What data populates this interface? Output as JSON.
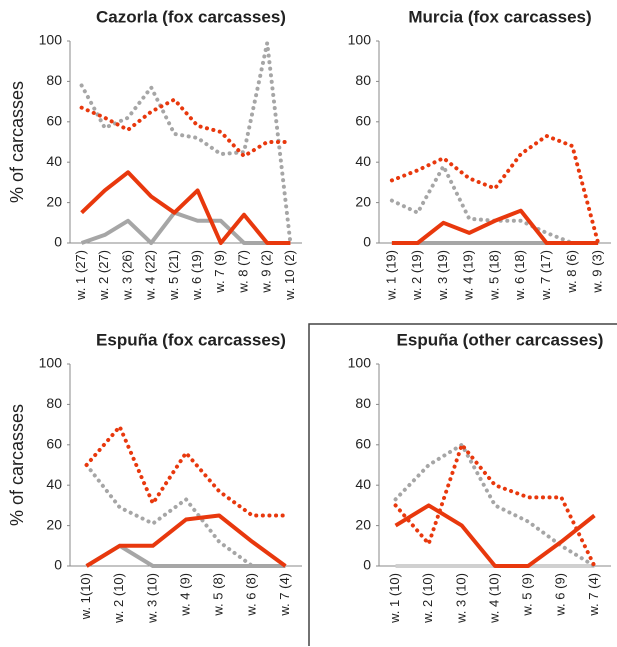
{
  "chart_data": [
    {
      "type": "line",
      "title": "Cazorla (fox carcasses)",
      "ylabel": "% of carcasses",
      "categories": [
        "w. 1 (27)",
        "w. 2 (27)",
        "w. 3 (26)",
        "w. 4 (22)",
        "w. 5 (21)",
        "w. 6 (19)",
        "w. 7 (9)",
        "w. 8 (7)",
        "w. 9 (2)",
        "w. 10 (2)"
      ],
      "ylim": [
        0,
        100
      ],
      "yticks": [
        0,
        20,
        40,
        60,
        80,
        100
      ],
      "series": [
        {
          "color": "#a6a6a6",
          "style": "solid",
          "values": [
            0,
            4,
            11,
            0,
            15,
            11,
            11,
            0,
            0,
            0
          ]
        },
        {
          "color": "#a6a6a6",
          "style": "dotted",
          "values": [
            78,
            57,
            62,
            77,
            54,
            52,
            44,
            45,
            99,
            0
          ]
        },
        {
          "color": "#e8380d",
          "style": "dotted",
          "values": [
            67,
            62,
            56,
            65,
            71,
            58,
            55,
            43,
            50,
            50
          ]
        },
        {
          "color": "#e8380d",
          "style": "solid",
          "values": [
            15,
            26,
            35,
            23,
            15,
            26,
            0,
            14,
            0,
            0
          ]
        }
      ]
    },
    {
      "type": "line",
      "title": "Murcia (fox carcasses)",
      "categories": [
        "w. 1 (19)",
        "w. 2 (19)",
        "w. 3 (19)",
        "w. 4 (19)",
        "w. 5 (18)",
        "w. 6 (18)",
        "w. 7 (17)",
        "w. 8 (6)",
        "w. 9 (3)"
      ],
      "ylim": [
        0,
        100
      ],
      "yticks": [
        0,
        20,
        40,
        60,
        80,
        100
      ],
      "series": [
        {
          "color": "#a6a6a6",
          "style": "solid",
          "values": [
            0,
            0,
            0,
            0,
            0,
            0,
            0,
            0,
            0
          ]
        },
        {
          "color": "#a6a6a6",
          "style": "dotted",
          "values": [
            21,
            15,
            38,
            12,
            11,
            11,
            5,
            0,
            0
          ]
        },
        {
          "color": "#e8380d",
          "style": "dotted",
          "values": [
            31,
            36,
            42,
            32,
            27,
            44,
            53,
            48,
            0
          ]
        },
        {
          "color": "#e8380d",
          "style": "solid",
          "values": [
            0,
            0,
            10,
            5,
            11,
            16,
            0,
            0,
            0
          ]
        }
      ]
    },
    {
      "type": "line",
      "title": "Espuña (fox carcasses)",
      "ylabel": "% of carcasses",
      "categories": [
        "w. 1(10)",
        "w. 2 (10)",
        "w. 3 (10)",
        "w. 4 (9)",
        "w. 5 (8)",
        "w. 6 (8)",
        "w. 7 (4)"
      ],
      "ylim": [
        0,
        100
      ],
      "yticks": [
        0,
        20,
        40,
        60,
        80,
        100
      ],
      "series": [
        {
          "color": "#a6a6a6",
          "style": "solid",
          "values": [
            0,
            10,
            0,
            0,
            0,
            0,
            0
          ]
        },
        {
          "color": "#a6a6a6",
          "style": "dotted",
          "values": [
            50,
            29,
            21,
            33,
            12,
            0,
            0
          ]
        },
        {
          "color": "#e8380d",
          "style": "dotted",
          "values": [
            50,
            69,
            31,
            56,
            37,
            25,
            25
          ]
        },
        {
          "color": "#e8380d",
          "style": "solid",
          "values": [
            0,
            10,
            10,
            23,
            25,
            12,
            0
          ]
        }
      ]
    },
    {
      "type": "line",
      "title": "Espuña (other carcasses)",
      "frame": true,
      "categories": [
        "w. 1 (10)",
        "w. 2 (10)",
        "w. 3 (10)",
        "w. 4 (10)",
        "w. 5 (9)",
        "w. 6 (9)",
        "w. 7 (4)"
      ],
      "ylim": [
        0,
        100
      ],
      "yticks": [
        0,
        20,
        40,
        60,
        80,
        100
      ],
      "series": [
        {
          "color": "#d0d0d0",
          "style": "solid",
          "values": [
            0,
            0,
            0,
            0,
            0,
            0,
            0
          ]
        },
        {
          "color": "#a6a6a6",
          "style": "dotted",
          "values": [
            33,
            50,
            60,
            30,
            22,
            10,
            0
          ]
        },
        {
          "color": "#e8380d",
          "style": "dotted",
          "values": [
            30,
            11,
            60,
            40,
            34,
            34,
            0
          ]
        },
        {
          "color": "#e8380d",
          "style": "solid",
          "values": [
            20,
            30,
            20,
            0,
            0,
            12,
            25
          ]
        }
      ]
    }
  ]
}
